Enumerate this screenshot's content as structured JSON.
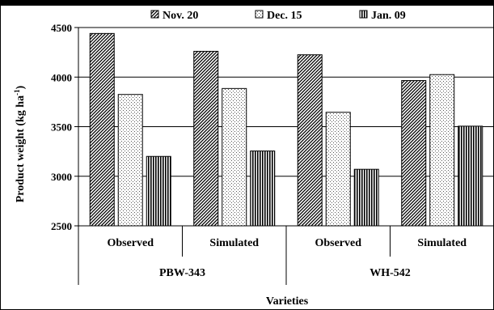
{
  "chart_data": {
    "type": "bar",
    "ylabel_main": "Product weight (kg ha",
    "ylabel_sup": "-1",
    "ylabel_close": ")",
    "xlabel": "Varieties",
    "ylim": [
      2500,
      4500
    ],
    "yticks": [
      "2500",
      "3000",
      "3500",
      "4000",
      "4500"
    ],
    "categories": [
      "Observed",
      "Simulated",
      "Observed",
      "Simulated"
    ],
    "groups": [
      "PBW-343",
      "WH-542"
    ],
    "legend_position": "top",
    "series": [
      {
        "name": "Nov. 20",
        "pattern": "diagonal-hatch",
        "values": [
          4440,
          4260,
          4225,
          3965
        ]
      },
      {
        "name": "Dec. 15",
        "pattern": "dotted",
        "values": [
          3825,
          3885,
          3645,
          4025
        ]
      },
      {
        "name": "Jan. 09",
        "pattern": "vertical-stripes",
        "values": [
          3200,
          3255,
          3070,
          3505
        ]
      }
    ]
  }
}
